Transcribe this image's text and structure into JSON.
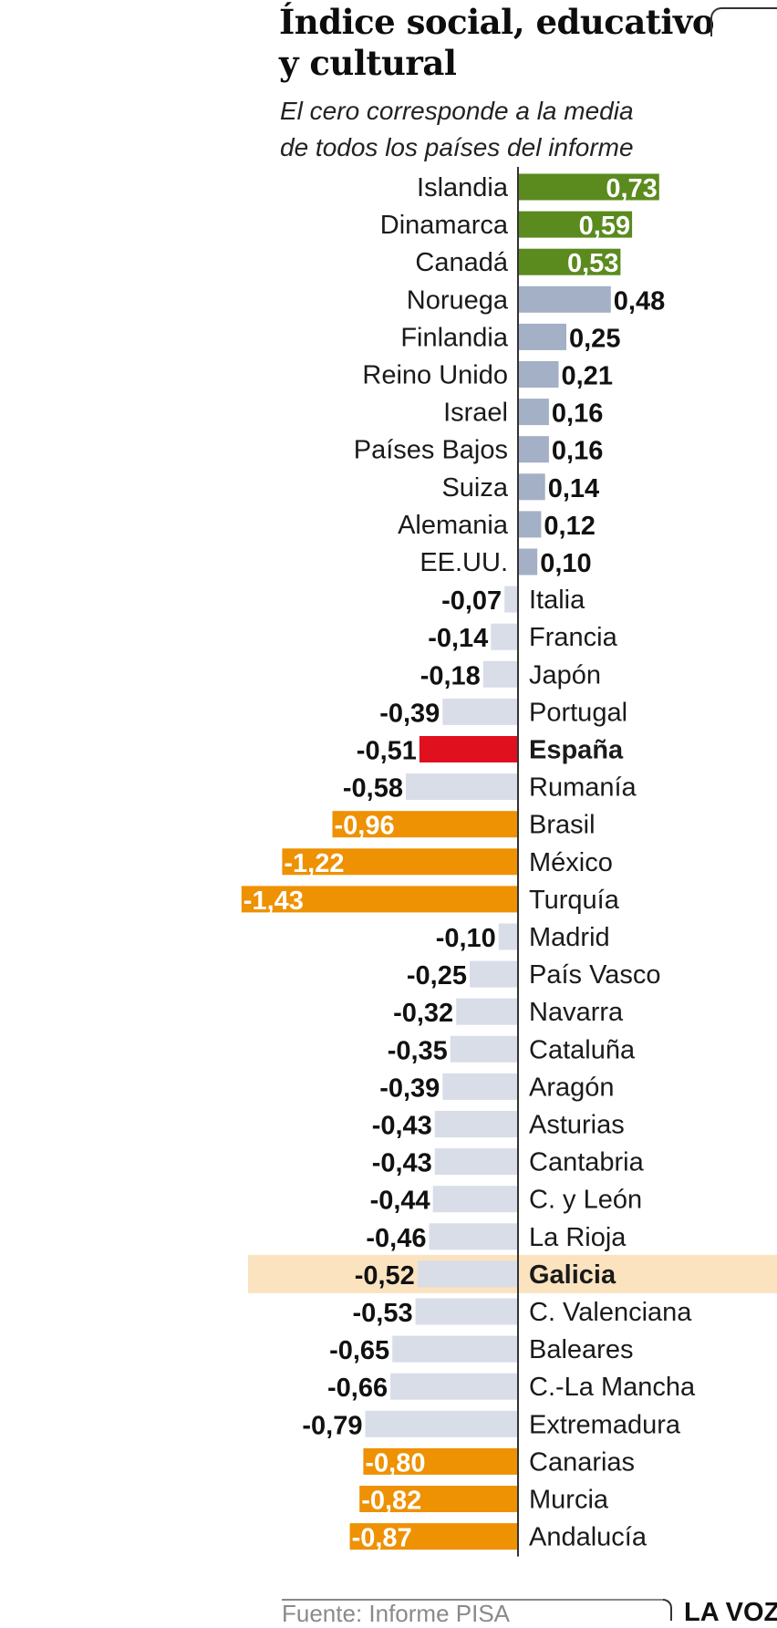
{
  "chart_data": {
    "type": "bar",
    "orientation": "horizontal",
    "title_lines": [
      "Índice social, educativo",
      "y cultural"
    ],
    "subtitle_lines": [
      "El cero corresponde a la media",
      "de todos los países del informe"
    ],
    "grid": false,
    "categories": [
      "Islandia",
      "Dinamarca",
      "Canadá",
      "Noruega",
      "Finlandia",
      "Reino Unido",
      "Israel",
      "Países Bajos",
      "Suiza",
      "Alemania",
      "EE.UU.",
      "Italia",
      "Francia",
      "Japón",
      "Portugal",
      "España",
      "Rumanía",
      "Brasil",
      "México",
      "Turquía",
      "Madrid",
      "País Vasco",
      "Navarra",
      "Cataluña",
      "Aragón",
      "Asturias",
      "Cantabria",
      "C. y León",
      "La Rioja",
      "Galicia",
      "C. Valenciana",
      "Baleares",
      "C.-La Mancha",
      "Extremadura",
      "Canarias",
      "Murcia",
      "Andalucía"
    ],
    "values": [
      0.73,
      0.59,
      0.53,
      0.48,
      0.25,
      0.21,
      0.16,
      0.16,
      0.14,
      0.12,
      0.1,
      -0.07,
      -0.14,
      -0.18,
      -0.39,
      -0.51,
      -0.58,
      -0.96,
      -1.22,
      -1.43,
      -0.1,
      -0.25,
      -0.32,
      -0.35,
      -0.39,
      -0.43,
      -0.43,
      -0.44,
      -0.46,
      -0.52,
      -0.53,
      -0.65,
      -0.66,
      -0.79,
      -0.8,
      -0.82,
      -0.87
    ],
    "value_labels": [
      "0,73",
      "0,59",
      "0,53",
      "0,48",
      "0,25",
      "0,21",
      "0,16",
      "0,16",
      "0,14",
      "0,12",
      "0,10",
      "-0,07",
      "-0,14",
      "-0,18",
      "-0,39",
      "-0,51",
      "-0,58",
      "-0,96",
      "-1,22",
      "-1,43",
      "-0,10",
      "-0,25",
      "-0,32",
      "-0,35",
      "-0,39",
      "-0,43",
      "-0,43",
      "-0,44",
      "-0,46",
      "-0,52",
      "-0,53",
      "-0,65",
      "-0,66",
      "-0,79",
      "-0,80",
      "-0,82",
      "-0,87"
    ],
    "bar_style": [
      "top",
      "top",
      "top",
      "pos",
      "pos",
      "pos",
      "pos",
      "pos",
      "pos",
      "pos",
      "pos",
      "neg",
      "neg",
      "neg",
      "neg",
      "spain",
      "neg",
      "bottom",
      "bottom",
      "bottom",
      "neg",
      "neg",
      "neg",
      "neg",
      "neg",
      "neg",
      "neg",
      "neg",
      "neg",
      "neg",
      "neg",
      "neg",
      "neg",
      "neg",
      "bottom",
      "bottom",
      "bottom"
    ],
    "bold_categories": [
      "España",
      "Galicia"
    ],
    "highlight_row": "Galicia",
    "xlim": [
      -1.43,
      0.73
    ],
    "colors": {
      "top": "#5b8a1e",
      "pos": "#a3b0c5",
      "neg": "#d8dde8",
      "spain": "#e0101f",
      "bottom": "#ee9102",
      "highlight": "#fbe3c0"
    }
  },
  "footer": {
    "source": "Fuente: Informe PISA",
    "brand": "LA VOZ"
  }
}
